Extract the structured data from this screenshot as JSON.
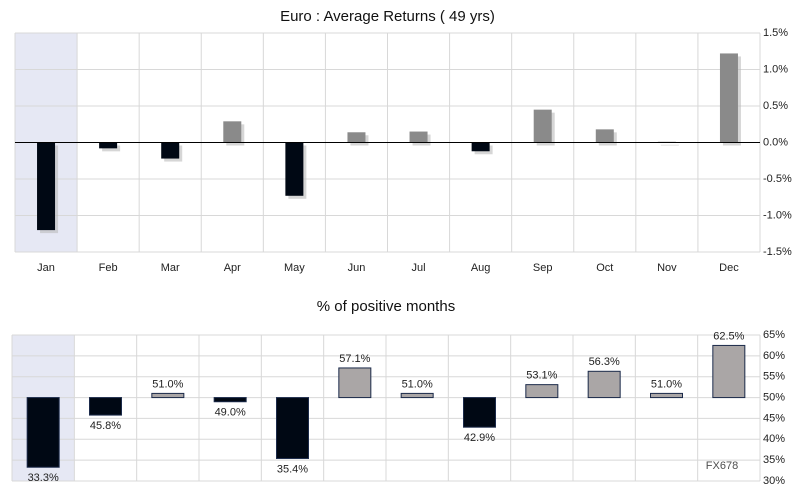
{
  "chart_data": [
    {
      "type": "bar",
      "title": "Euro : Average Returns ( 49 yrs)",
      "categories": [
        "Jan",
        "Feb",
        "Mar",
        "Apr",
        "May",
        "Jun",
        "Jul",
        "Aug",
        "Sep",
        "Oct",
        "Nov",
        "Dec"
      ],
      "values": [
        -1.2,
        -0.08,
        -0.22,
        0.29,
        -0.73,
        0.14,
        0.15,
        -0.12,
        0.45,
        0.18,
        0.01,
        1.22
      ],
      "baseline": 0,
      "positive_color": "#8a8a8a",
      "negative_color": "#000814",
      "negative_tick_color": "#d40000",
      "highlight": "Jan",
      "ylim": [
        -1.5,
        1.5
      ],
      "yticks": [
        {
          "value": -1.5,
          "label": "-1.5%"
        },
        {
          "value": -1,
          "label": "-1.0%"
        },
        {
          "value": -0.5,
          "label": "-0.5%"
        },
        {
          "value": 0,
          "label": "0.0%"
        },
        {
          "value": 0.5,
          "label": "0.5%"
        },
        {
          "value": 1,
          "label": "1.0%"
        },
        {
          "value": 1.5,
          "label": "1.5%"
        }
      ],
      "grid": true
    },
    {
      "type": "bar",
      "title": "% of positive months",
      "categories": [
        "Jan",
        "Feb",
        "Mar",
        "Apr",
        "May",
        "Jun",
        "Jul",
        "Aug",
        "Sep",
        "Oct",
        "Nov",
        "Dec"
      ],
      "values": [
        33.3,
        45.8,
        51.0,
        49.0,
        35.4,
        57.1,
        51.0,
        42.9,
        53.1,
        56.3,
        51.0,
        62.5
      ],
      "value_labels": [
        "33.3%",
        "45.8%",
        "51.0%",
        "49.0%",
        "35.4%",
        "57.1%",
        "51.0%",
        "42.9%",
        "53.1%",
        "56.3%",
        "51.0%",
        "62.5%"
      ],
      "baseline": 50,
      "positive_color": "#aaa6a6",
      "negative_color": "#000814",
      "highlight": "Jan",
      "ylim": [
        30,
        65
      ],
      "yticks": [
        {
          "value": 30,
          "label": "30%"
        },
        {
          "value": 35,
          "label": "35%"
        },
        {
          "value": 40,
          "label": "40%"
        },
        {
          "value": 45,
          "label": "45%"
        },
        {
          "value": 50,
          "label": "50%"
        },
        {
          "value": 55,
          "label": "55%"
        },
        {
          "value": 60,
          "label": "60%"
        },
        {
          "value": 65,
          "label": "65%"
        }
      ],
      "grid": true,
      "watermark": "FX678"
    }
  ]
}
